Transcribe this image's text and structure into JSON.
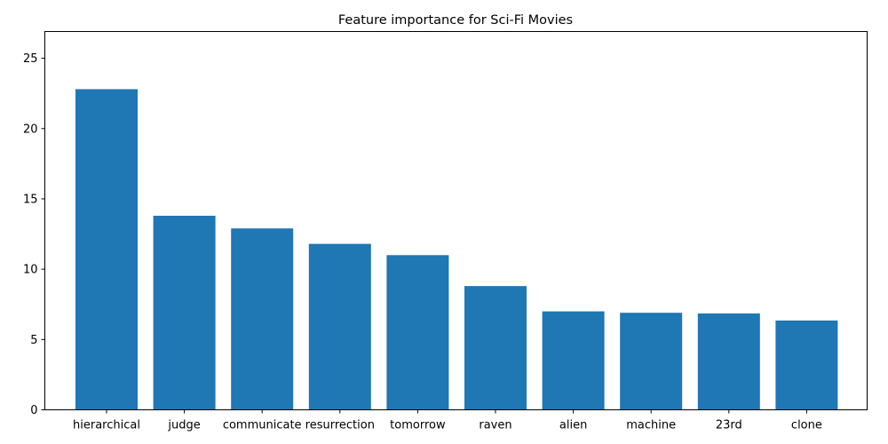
{
  "chart_data": {
    "type": "bar",
    "title": "Feature importance for Sci-Fi Movies",
    "xlabel": "",
    "ylabel": "",
    "categories": [
      "hierarchical",
      "judge",
      "communicate",
      "resurrection",
      "tomorrow",
      "raven",
      "alien",
      "machine",
      "23rd",
      "clone"
    ],
    "values": [
      22.8,
      13.8,
      12.9,
      11.8,
      11.0,
      8.8,
      7.0,
      6.9,
      6.85,
      6.35
    ],
    "ylim": [
      0,
      26.9
    ],
    "yticks": [
      0,
      5,
      10,
      15,
      20,
      25
    ],
    "ytick_labels": [
      "0",
      "5",
      "10",
      "15",
      "20",
      "25"
    ],
    "bar_color": "#1f77b4",
    "grid": false,
    "legend": "none"
  }
}
